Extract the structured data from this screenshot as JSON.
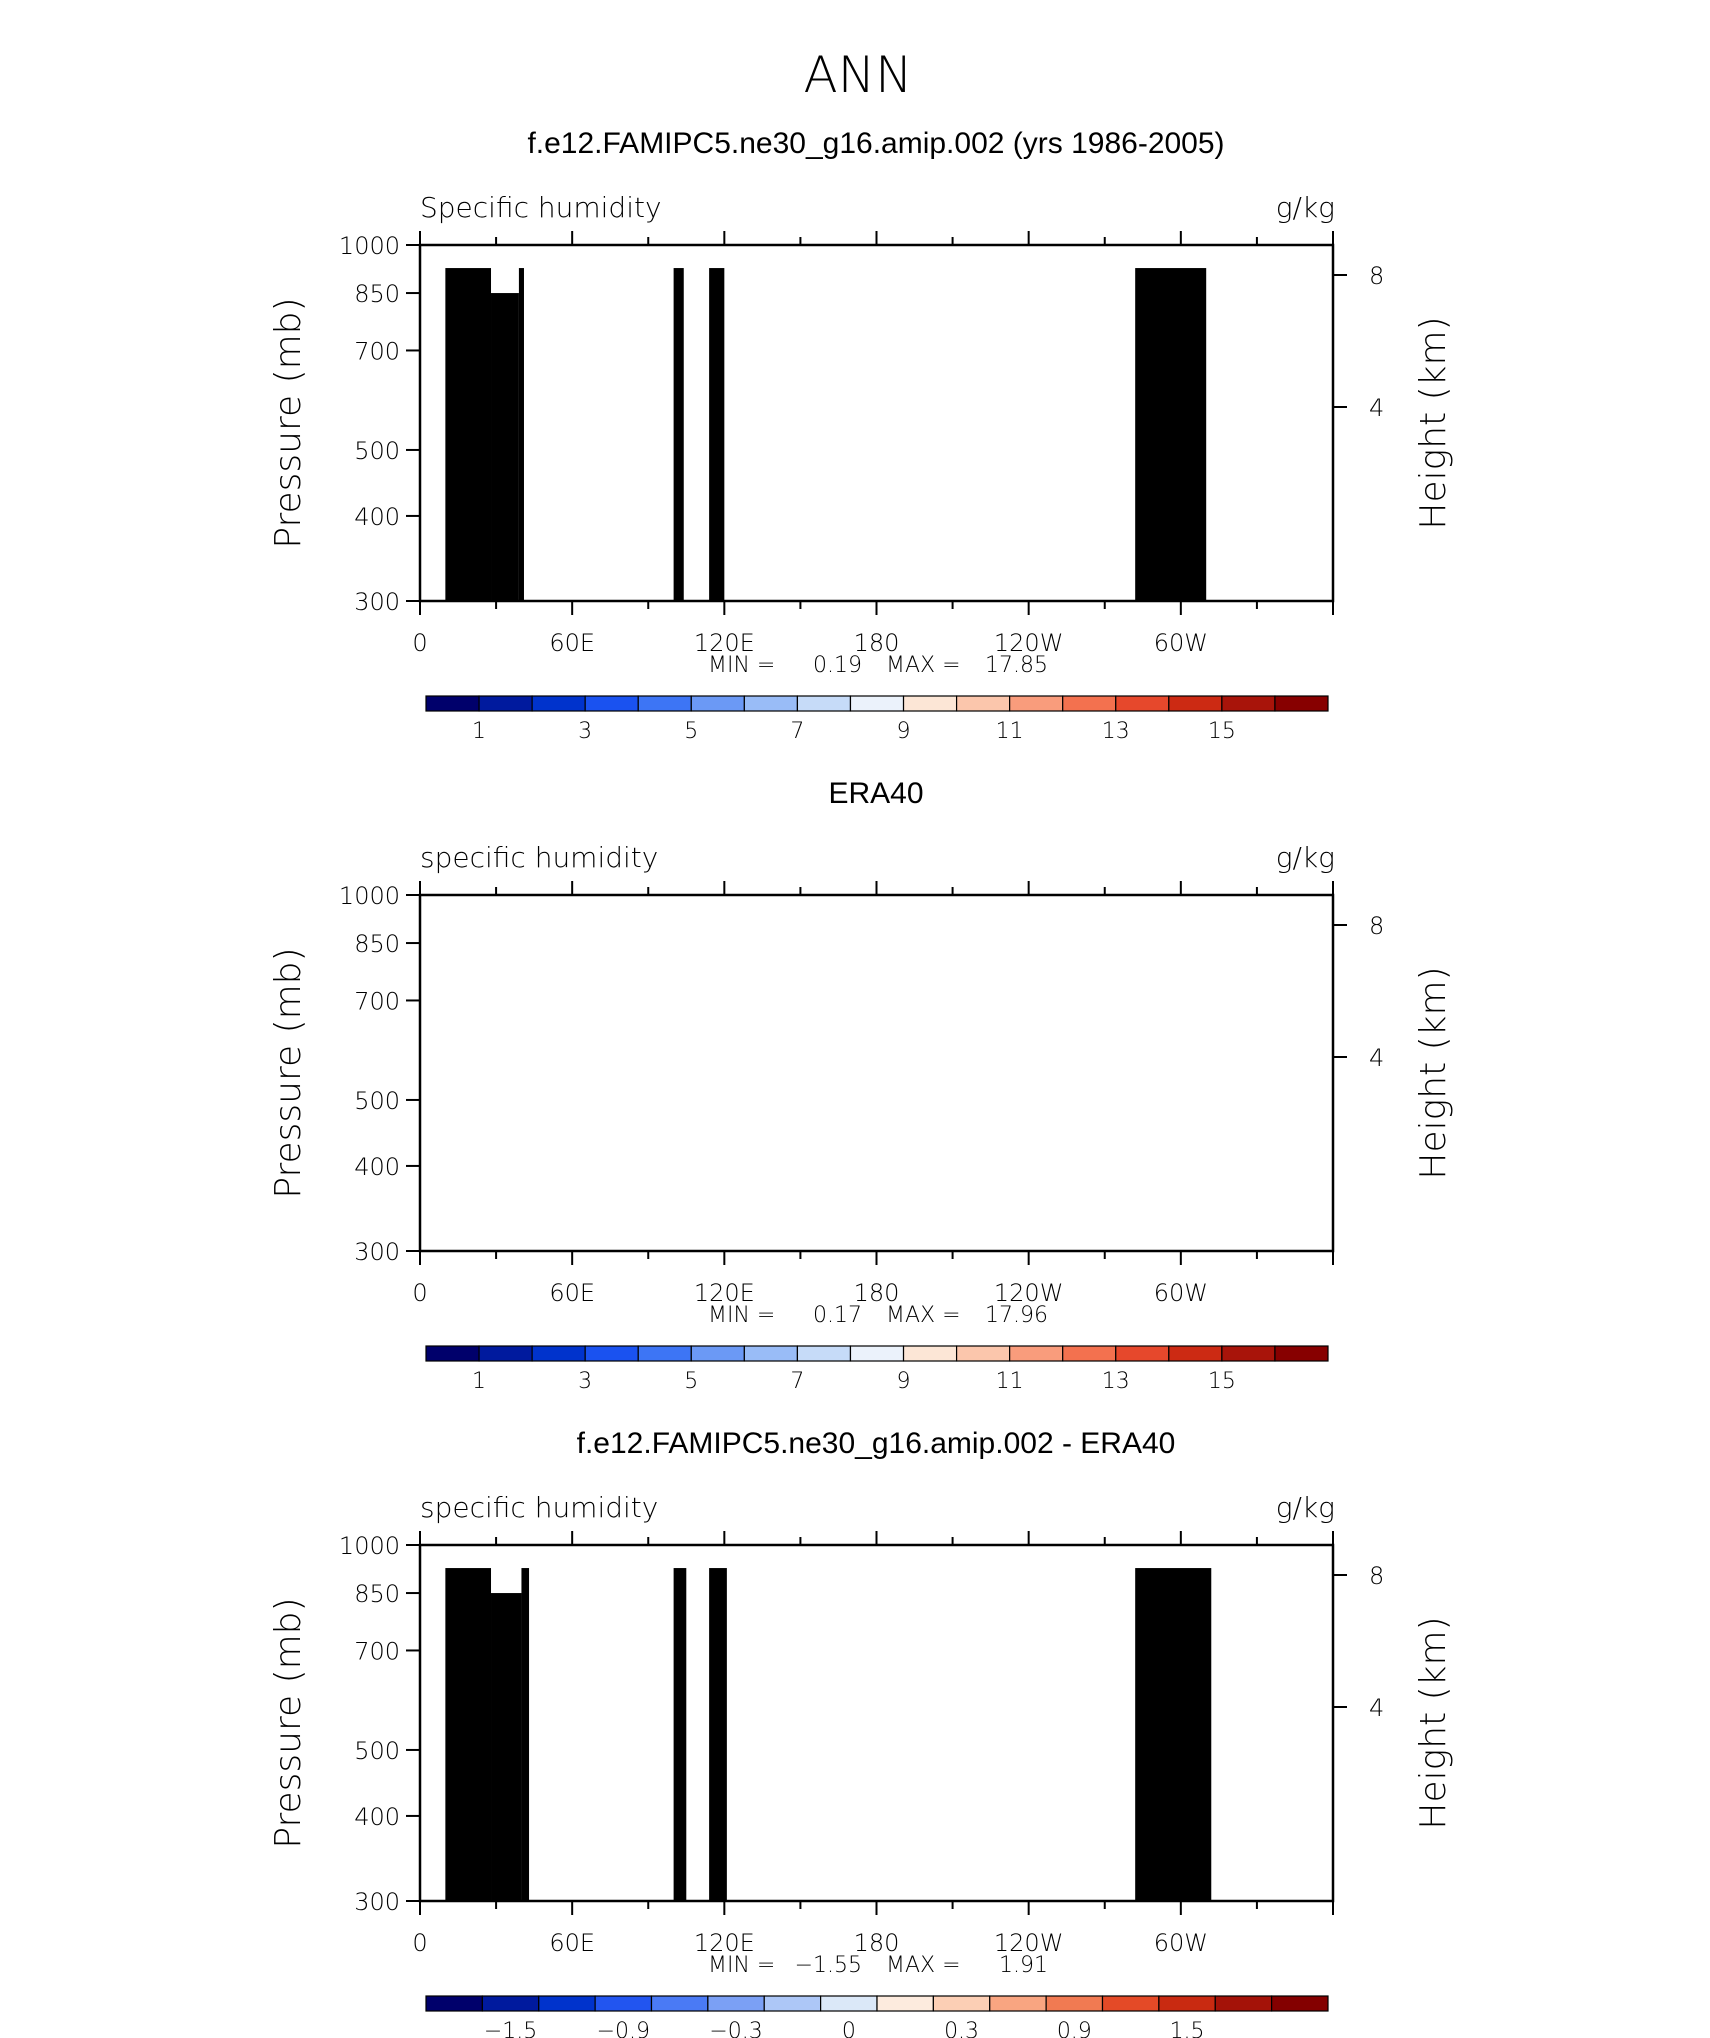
{
  "page": {
    "title": "ANN"
  },
  "chart_data": [
    {
      "type": "heatmap",
      "title": "f.e12.FAMIPC5.ne30_g16.amip.002 (yrs 1986-2005)",
      "variable": "Specific humidity",
      "units": "g/kg",
      "ylabel": "Pressure (mb)",
      "ylabel_right": "Height (km)",
      "x_ticks": [
        "0",
        "60E",
        "120E",
        "180",
        "120W",
        "60W"
      ],
      "y_ticks": [
        "300",
        "400",
        "500",
        "700",
        "850",
        "1000"
      ],
      "y_right_ticks": [
        "8",
        "4"
      ],
      "ylim": [
        1000,
        300
      ],
      "xlim": [
        0,
        360
      ],
      "min_label": "MIN =",
      "min_value": "0.19",
      "max_label": "MAX =",
      "max_value": "17.85",
      "colorbar_ticks": [
        "1",
        "3",
        "5",
        "7",
        "9",
        "11",
        "13",
        "15"
      ],
      "field": "model",
      "terrain": [
        {
          "x0": 10,
          "x1": 28,
          "p": 925
        },
        {
          "x0": 28,
          "x1": 39,
          "p": 850
        },
        {
          "x0": 39,
          "x1": 41,
          "p": 925
        },
        {
          "x0": 100,
          "x1": 104,
          "p": 925
        },
        {
          "x0": 114,
          "x1": 120,
          "p": 925
        },
        {
          "x0": 282,
          "x1": 310,
          "p": 925
        }
      ]
    },
    {
      "type": "heatmap",
      "title": "ERA40",
      "variable": "specific humidity",
      "units": "g/kg",
      "ylabel": "Pressure (mb)",
      "ylabel_right": "Height (km)",
      "x_ticks": [
        "0",
        "60E",
        "120E",
        "180",
        "120W",
        "60W"
      ],
      "y_ticks": [
        "300",
        "400",
        "500",
        "700",
        "850",
        "1000"
      ],
      "y_right_ticks": [
        "8",
        "4"
      ],
      "ylim": [
        1000,
        300
      ],
      "xlim": [
        0,
        360
      ],
      "min_label": "MIN =",
      "min_value": "0.17",
      "max_label": "MAX =",
      "max_value": "17.96",
      "colorbar_ticks": [
        "1",
        "3",
        "5",
        "7",
        "9",
        "11",
        "13",
        "15"
      ],
      "field": "obs",
      "terrain": []
    },
    {
      "type": "heatmap",
      "title": "f.e12.FAMIPC5.ne30_g16.amip.002 - ERA40",
      "variable": "specific humidity",
      "units": "g/kg",
      "ylabel": "Pressure (mb)",
      "ylabel_right": "Height (km)",
      "x_ticks": [
        "0",
        "60E",
        "120E",
        "180",
        "120W",
        "60W"
      ],
      "y_ticks": [
        "300",
        "400",
        "500",
        "700",
        "850",
        "1000"
      ],
      "y_right_ticks": [
        "8",
        "4"
      ],
      "ylim": [
        1000,
        300
      ],
      "xlim": [
        0,
        360
      ],
      "min_label": "MIN =",
      "min_value": "−1.55",
      "max_label": "MAX =",
      "max_value": "1.91",
      "colorbar_ticks": [
        "−1.5",
        "−0.9",
        "−0.3",
        "0",
        "0.3",
        "0.9",
        "1.5"
      ],
      "field": "diff",
      "terrain": [
        {
          "x0": 10,
          "x1": 28,
          "p": 925
        },
        {
          "x0": 28,
          "x1": 40,
          "p": 850
        },
        {
          "x0": 40,
          "x1": 43,
          "p": 925
        },
        {
          "x0": 100,
          "x1": 105,
          "p": 925
        },
        {
          "x0": 114,
          "x1": 121,
          "p": 925
        },
        {
          "x0": 282,
          "x1": 312,
          "p": 925
        }
      ]
    }
  ],
  "colors": {
    "abs_palette": [
      "#00006b",
      "#001a9e",
      "#0033cc",
      "#1a52f0",
      "#3d75f5",
      "#6b99f5",
      "#99bcf7",
      "#c6dbf8",
      "#ebf2fb",
      "#fce6d6",
      "#fbc6ac",
      "#f99c7c",
      "#f3714f",
      "#e6482c",
      "#cc2a13",
      "#a8140a",
      "#870000"
    ],
    "diff_palette": [
      "#00006b",
      "#001a9e",
      "#0033cc",
      "#2255f0",
      "#4a7af5",
      "#7ba0f5",
      "#adc7f7",
      "#dbe8f8",
      "#fdebde",
      "#fccfb5",
      "#f9a581",
      "#f17a52",
      "#e44a27",
      "#c92a11",
      "#a41208",
      "#840000"
    ],
    "terrain": "#000000"
  }
}
